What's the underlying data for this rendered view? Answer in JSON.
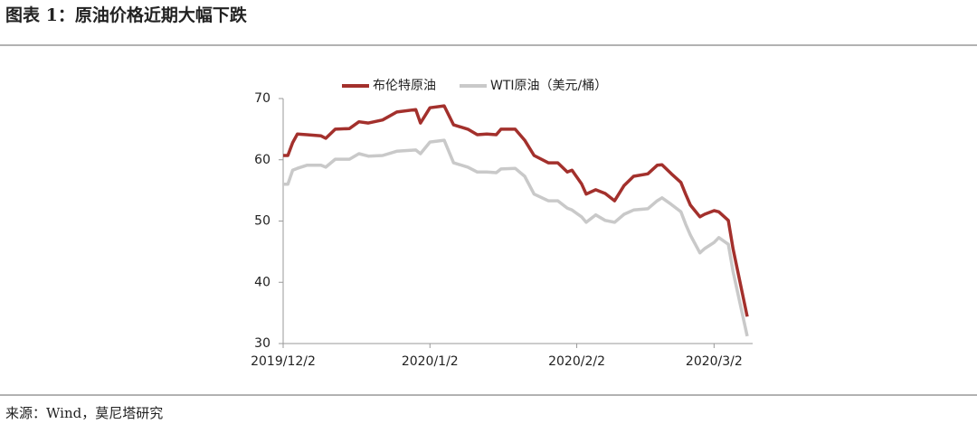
{
  "header": {
    "title": "图表 1：原油价格近期大幅下跌"
  },
  "chart_data": {
    "type": "line",
    "x": [
      "2019/12/2",
      "2019/12/3",
      "2019/12/4",
      "2019/12/5",
      "2019/12/7",
      "2019/12/10",
      "2019/12/11",
      "2019/12/13",
      "2019/12/16",
      "2019/12/18",
      "2019/12/20",
      "2019/12/23",
      "2019/12/26",
      "2019/12/30",
      "2019/12/31",
      "2020/1/2",
      "2020/1/5",
      "2020/1/7",
      "2020/1/10",
      "2020/1/12",
      "2020/1/14",
      "2020/1/16",
      "2020/1/17",
      "2020/1/20",
      "2020/1/22",
      "2020/1/24",
      "2020/1/27",
      "2020/1/29",
      "2020/1/31",
      "2020/2/1",
      "2020/2/3",
      "2020/2/4",
      "2020/2/6",
      "2020/2/8",
      "2020/2/10",
      "2020/2/12",
      "2020/2/14",
      "2020/2/17",
      "2020/2/19",
      "2020/2/20",
      "2020/2/22",
      "2020/2/24",
      "2020/2/25",
      "2020/2/26",
      "2020/2/28",
      "2020/2/29",
      "2020/3/2",
      "2020/3/3",
      "2020/3/5",
      "2020/3/6",
      "2020/3/9"
    ],
    "series": [
      {
        "name": "布伦特原油",
        "color": "#a3302c",
        "values": [
          60.7,
          60.7,
          62.8,
          64.2,
          64.1,
          63.9,
          63.5,
          65.0,
          65.1,
          66.2,
          66.0,
          66.5,
          67.8,
          68.2,
          66.0,
          68.5,
          68.8,
          65.7,
          65.0,
          64.1,
          64.2,
          64.1,
          65.0,
          65.0,
          63.2,
          60.7,
          59.5,
          59.5,
          58.0,
          58.3,
          56.1,
          54.4,
          55.1,
          54.5,
          53.3,
          55.8,
          57.3,
          57.7,
          59.1,
          59.2,
          57.7,
          56.3,
          54.4,
          52.6,
          50.7,
          51.1,
          51.7,
          51.5,
          50.1,
          45.5,
          34.4
        ]
      },
      {
        "name": "WTI原油（美元/桶）",
        "color": "#c9c9c9",
        "values": [
          56.0,
          56.0,
          58.3,
          58.6,
          59.1,
          59.1,
          58.8,
          60.1,
          60.1,
          61.0,
          60.6,
          60.7,
          61.4,
          61.6,
          61.0,
          62.9,
          63.2,
          59.5,
          58.8,
          58.0,
          58.0,
          57.9,
          58.5,
          58.6,
          57.3,
          54.4,
          53.3,
          53.3,
          52.1,
          51.8,
          50.7,
          49.8,
          51.0,
          50.1,
          49.8,
          51.1,
          51.8,
          52.0,
          53.3,
          53.8,
          52.7,
          51.5,
          49.5,
          47.7,
          44.8,
          45.5,
          46.5,
          47.3,
          46.2,
          41.8,
          31.2
        ]
      }
    ],
    "xlim": [
      "2019/12/2",
      "2020/3/9"
    ],
    "xticks": [
      "2019/12/2",
      "2020/1/2",
      "2020/2/2",
      "2020/3/2"
    ],
    "ylim": [
      30,
      70
    ],
    "yticks": [
      30,
      40,
      50,
      60,
      70
    ],
    "legend": "top"
  },
  "footer": {
    "source": "来源：Wind，莫尼塔研究"
  }
}
